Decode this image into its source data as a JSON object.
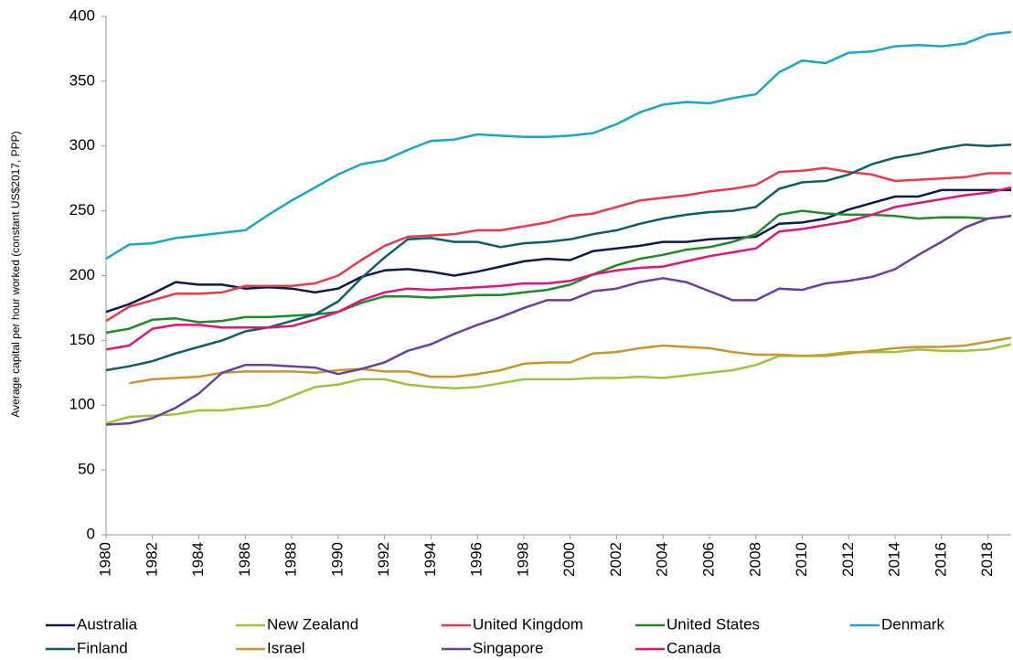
{
  "chart_data": {
    "type": "line",
    "y_label": "Average capital per hour worked (constant US$2017, PPP)",
    "x": [
      1980,
      1981,
      1982,
      1983,
      1984,
      1985,
      1986,
      1987,
      1988,
      1989,
      1990,
      1991,
      1992,
      1993,
      1994,
      1995,
      1996,
      1997,
      1998,
      1999,
      2000,
      2001,
      2002,
      2003,
      2004,
      2005,
      2006,
      2007,
      2008,
      2009,
      2010,
      2011,
      2012,
      2013,
      2014,
      2015,
      2016,
      2017,
      2018,
      2019
    ],
    "xlim": [
      1980,
      2019
    ],
    "xticks": [
      1980,
      1982,
      1984,
      1986,
      1988,
      1990,
      1992,
      1994,
      1996,
      1998,
      2000,
      2002,
      2004,
      2006,
      2008,
      2010,
      2012,
      2014,
      2016,
      2018
    ],
    "ylim": [
      0,
      400
    ],
    "yticks": [
      0,
      50,
      100,
      150,
      200,
      250,
      300,
      350,
      400
    ],
    "grid": false,
    "legend": "bottom",
    "series": [
      {
        "name": "Australia",
        "color": "#0e1a4e",
        "values": [
          172,
          178,
          186,
          195,
          193,
          193,
          190,
          191,
          190,
          187,
          190,
          199,
          204,
          205,
          203,
          200,
          203,
          207,
          211,
          213,
          212,
          219,
          221,
          223,
          226,
          226,
          228,
          229,
          230,
          240,
          241,
          244,
          251,
          256,
          261,
          261,
          266,
          266,
          266,
          266
        ]
      },
      {
        "name": "New Zealand",
        "color": "#9dc43c",
        "values": [
          86,
          91,
          92,
          93,
          96,
          96,
          98,
          100,
          107,
          114,
          116,
          120,
          120,
          116,
          114,
          113,
          114,
          117,
          120,
          120,
          120,
          121,
          121,
          122,
          121,
          123,
          125,
          127,
          131,
          138,
          138,
          139,
          141,
          141,
          141,
          143,
          142,
          142,
          143,
          147
        ]
      },
      {
        "name": "United Kingdom",
        "color": "#e8394f",
        "values": [
          165,
          176,
          181,
          186,
          186,
          187,
          192,
          192,
          192,
          194,
          200,
          212,
          223,
          230,
          231,
          232,
          235,
          235,
          238,
          241,
          246,
          248,
          253,
          258,
          260,
          262,
          265,
          267,
          270,
          280,
          281,
          283,
          280,
          278,
          273,
          274,
          275,
          276,
          279,
          279
        ]
      },
      {
        "name": "United States",
        "color": "#1e8a2a",
        "values": [
          156,
          159,
          166,
          167,
          164,
          165,
          168,
          168,
          169,
          170,
          172,
          179,
          184,
          184,
          183,
          184,
          185,
          185,
          187,
          189,
          193,
          201,
          208,
          213,
          216,
          220,
          222,
          226,
          232,
          247,
          250,
          248,
          247,
          247,
          246,
          244,
          245,
          245,
          244,
          246
        ]
      },
      {
        "name": "Denmark",
        "color": "#1ba6c8",
        "values": [
          213,
          224,
          225,
          229,
          231,
          233,
          235,
          247,
          258,
          268,
          278,
          286,
          289,
          297,
          304,
          305,
          309,
          308,
          307,
          307,
          308,
          310,
          317,
          326,
          332,
          334,
          333,
          337,
          340,
          357,
          366,
          364,
          372,
          373,
          377,
          378,
          377,
          379,
          386,
          388
        ]
      },
      {
        "name": "Finland",
        "color": "#0b5e6e",
        "values": [
          127,
          130,
          134,
          140,
          145,
          150,
          157,
          160,
          165,
          170,
          180,
          198,
          214,
          228,
          229,
          226,
          226,
          222,
          225,
          226,
          228,
          232,
          235,
          240,
          244,
          247,
          249,
          250,
          253,
          267,
          272,
          273,
          278,
          286,
          291,
          294,
          298,
          301,
          300,
          301
        ]
      },
      {
        "name": "Israel",
        "color": "#c8962e",
        "values": [
          null,
          117,
          120,
          121,
          122,
          125,
          126,
          126,
          126,
          125,
          127,
          128,
          126,
          126,
          122,
          122,
          124,
          127,
          132,
          133,
          133,
          140,
          141,
          144,
          146,
          145,
          144,
          141,
          139,
          139,
          138,
          138,
          140,
          142,
          144,
          145,
          145,
          146,
          149,
          152
        ]
      },
      {
        "name": "Singapore",
        "color": "#6b3f9c",
        "values": [
          85,
          86,
          90,
          98,
          109,
          125,
          131,
          131,
          130,
          129,
          124,
          128,
          133,
          142,
          147,
          155,
          162,
          168,
          175,
          181,
          181,
          188,
          190,
          195,
          198,
          195,
          188,
          181,
          181,
          190,
          189,
          194,
          196,
          199,
          205,
          216,
          226,
          237,
          244,
          246
        ]
      },
      {
        "name": "Canada",
        "color": "#e0157a",
        "values": [
          143,
          146,
          159,
          162,
          162,
          160,
          160,
          160,
          161,
          166,
          172,
          181,
          187,
          190,
          189,
          190,
          191,
          192,
          194,
          194,
          196,
          201,
          204,
          206,
          207,
          211,
          215,
          218,
          221,
          234,
          236,
          239,
          242,
          247,
          253,
          256,
          259,
          262,
          264,
          268
        ]
      }
    ]
  }
}
